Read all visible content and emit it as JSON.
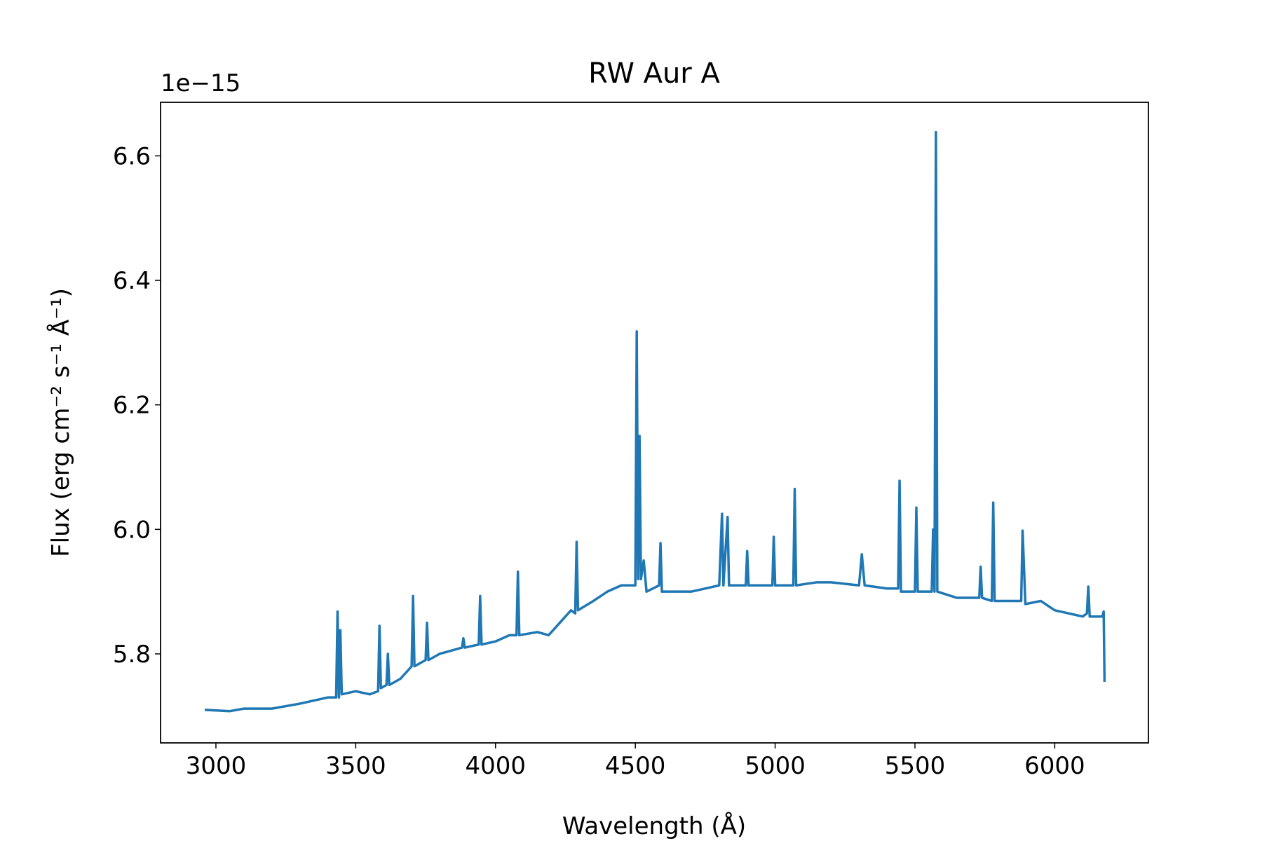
{
  "chart_data": {
    "type": "line",
    "title": "RW Aur A",
    "x_label": "Wavelength (Å)",
    "y_label": "Flux (erg cm⁻² s⁻¹ Å⁻¹)",
    "y_offset_label": "1e−15",
    "color": "#1f77b4",
    "xlim": [
      2802,
      6335
    ],
    "ylim": [
      5.657,
      6.686
    ],
    "xticks": [
      3000,
      3500,
      4000,
      4500,
      5000,
      5500,
      6000
    ],
    "yticks": [
      5.8,
      {
        "value": 6,
        "label": "6.0"
      },
      6.2,
      6.4,
      6.6
    ],
    "grid": false,
    "x": [
      2960,
      3050,
      3100,
      3200,
      3300,
      3400,
      3430,
      3435,
      3440,
      3445,
      3450,
      3500,
      3550,
      3580,
      3585,
      3590,
      3610,
      3615,
      3620,
      3660,
      3700,
      3705,
      3710,
      3750,
      3755,
      3760,
      3800,
      3880,
      3885,
      3890,
      3940,
      3945,
      3950,
      4000,
      4050,
      4075,
      4080,
      4085,
      4150,
      4190,
      4230,
      4270,
      4285,
      4290,
      4295,
      4350,
      4400,
      4450,
      4500,
      4505,
      4510,
      4515,
      4520,
      4530,
      4540,
      4585,
      4590,
      4595,
      4700,
      4800,
      4810,
      4815,
      4830,
      4835,
      4895,
      4900,
      4905,
      4990,
      4995,
      5000,
      5065,
      5070,
      5075,
      5150,
      5200,
      5300,
      5310,
      5320,
      5400,
      5440,
      5445,
      5450,
      5500,
      5505,
      5510,
      5560,
      5565,
      5570,
      5575,
      5580,
      5650,
      5730,
      5735,
      5740,
      5775,
      5780,
      5785,
      5880,
      5885,
      5895,
      5950,
      6000,
      6100,
      6115,
      6120,
      6125,
      6170,
      6175,
      6178
    ],
    "values": [
      5.71,
      5.708,
      5.712,
      5.712,
      5.72,
      5.73,
      5.73,
      5.868,
      5.73,
      5.838,
      5.735,
      5.74,
      5.735,
      5.74,
      5.845,
      5.745,
      5.75,
      5.8,
      5.75,
      5.76,
      5.78,
      5.893,
      5.78,
      5.79,
      5.85,
      5.79,
      5.8,
      5.81,
      5.825,
      5.81,
      5.815,
      5.893,
      5.815,
      5.82,
      5.83,
      5.83,
      5.932,
      5.83,
      5.835,
      5.83,
      5.85,
      5.87,
      5.865,
      5.98,
      5.87,
      5.885,
      5.9,
      5.91,
      5.91,
      6.318,
      5.92,
      6.15,
      5.92,
      5.95,
      5.9,
      5.91,
      5.978,
      5.9,
      5.9,
      5.91,
      6.025,
      5.91,
      6.02,
      5.91,
      5.91,
      5.965,
      5.91,
      5.91,
      5.988,
      5.91,
      5.91,
      6.065,
      5.91,
      5.915,
      5.915,
      5.91,
      5.96,
      5.91,
      5.905,
      5.905,
      6.078,
      5.9,
      5.9,
      6.035,
      5.9,
      5.9,
      6.0,
      5.9,
      6.638,
      5.9,
      5.89,
      5.89,
      5.94,
      5.89,
      5.885,
      6.043,
      5.885,
      5.885,
      5.998,
      5.88,
      5.885,
      5.87,
      5.86,
      5.865,
      5.908,
      5.86,
      5.86,
      5.868,
      5.755
    ]
  }
}
